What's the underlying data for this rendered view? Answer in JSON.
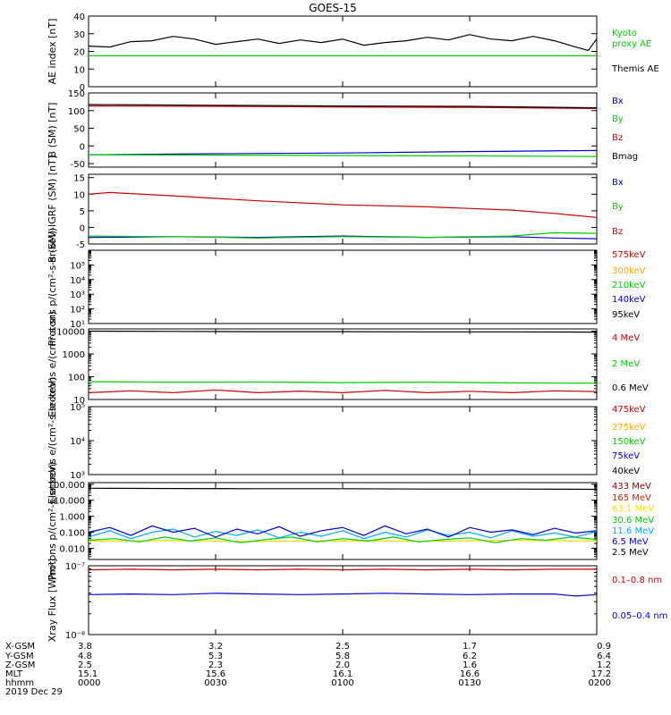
{
  "title": "GOES-15",
  "chart_data": [
    {
      "type": "line",
      "ylabel": "AE index [nT]",
      "ylim": [
        0,
        40
      ],
      "yticks": [
        "0",
        "10",
        "20",
        "30",
        "40"
      ],
      "ytick_values": [
        0,
        10,
        20,
        30,
        40
      ],
      "scale": "linear",
      "series": [
        {
          "name": "Kyoto proxy AE",
          "label_lines": [
            "Kyoto",
            "proxy AE"
          ],
          "color": "#00cc00",
          "x": [
            0,
            120
          ],
          "y": [
            17.5,
            17.5
          ]
        },
        {
          "name": "Themis AE",
          "label_lines": [
            "Themis AE"
          ],
          "color": "#000000",
          "x": [
            0,
            5,
            10,
            15,
            20,
            25,
            30,
            35,
            40,
            45,
            50,
            55,
            60,
            65,
            70,
            75,
            80,
            85,
            90,
            95,
            100,
            105,
            110,
            115,
            118,
            120
          ],
          "y": [
            23,
            22.5,
            25.5,
            26,
            28.5,
            27,
            24,
            25.5,
            27,
            24.5,
            26.5,
            25,
            27,
            23.5,
            25,
            26,
            28,
            26.5,
            29.5,
            27,
            26,
            28.5,
            26,
            22.5,
            20.5,
            27
          ]
        }
      ]
    },
    {
      "type": "line",
      "ylabel": "B (SM) [nT]",
      "ylim": [
        -60,
        150
      ],
      "yticks": [
        "-50",
        "0",
        "50",
        "100",
        "150"
      ],
      "ytick_values": [
        -50,
        0,
        50,
        100,
        150
      ],
      "scale": "linear",
      "series": [
        {
          "name": "Bx",
          "label_lines": [
            "Bx"
          ],
          "color": "#0000cc",
          "x": [
            0,
            30,
            60,
            90,
            120
          ],
          "y": [
            -25,
            -22,
            -20,
            -16,
            -13
          ]
        },
        {
          "name": "By",
          "label_lines": [
            "By"
          ],
          "color": "#00cc00",
          "x": [
            0,
            30,
            60,
            90,
            120
          ],
          "y": [
            -25,
            -26,
            -27,
            -28,
            -30
          ]
        },
        {
          "name": "Bz",
          "label_lines": [
            "Bz"
          ],
          "color": "#cc0000",
          "x": [
            0,
            30,
            60,
            90,
            120
          ],
          "y": [
            113,
            112,
            110,
            109,
            106
          ]
        },
        {
          "name": "Bmag",
          "label_lines": [
            "Bmag"
          ],
          "color": "#000000",
          "x": [
            0,
            30,
            60,
            90,
            120
          ],
          "y": [
            117,
            115,
            113,
            112,
            108
          ]
        }
      ]
    },
    {
      "type": "line",
      "ylabel": "B (SM)-IGRF (SM) [nT]",
      "ylim": [
        -5,
        16
      ],
      "yticks": [
        "-5",
        "0",
        "5",
        "10",
        "15"
      ],
      "ytick_values": [
        -5,
        0,
        5,
        10,
        15
      ],
      "scale": "linear",
      "series": [
        {
          "name": "Bx",
          "label_lines": [
            "Bx"
          ],
          "color": "#0000cc",
          "x": [
            0,
            20,
            40,
            60,
            80,
            100,
            110,
            120
          ],
          "y": [
            -3,
            -2.8,
            -3,
            -2.6,
            -3,
            -2.8,
            -3.2,
            -3.4
          ]
        },
        {
          "name": "By",
          "label_lines": [
            "By"
          ],
          "color": "#00cc00",
          "x": [
            0,
            20,
            40,
            60,
            80,
            100,
            110,
            120
          ],
          "y": [
            -2.6,
            -2.8,
            -3.2,
            -2.8,
            -3,
            -2.6,
            -1.6,
            -1.8
          ]
        },
        {
          "name": "Bz",
          "label_lines": [
            "Bz"
          ],
          "color": "#cc0000",
          "x": [
            0,
            5,
            20,
            40,
            60,
            80,
            100,
            110,
            120
          ],
          "y": [
            10,
            10.5,
            9.5,
            8,
            6.8,
            6.2,
            5.2,
            4.2,
            3
          ]
        }
      ]
    },
    {
      "type": "line",
      "ylabel": "Protons p/(cm²-s-sr-keV)",
      "ylim": [
        1,
        6
      ],
      "yticks": [
        "10¹",
        "10²",
        "10³",
        "10⁴",
        "10⁵"
      ],
      "ytick_values": [
        1,
        2,
        3,
        4,
        5
      ],
      "scale": "log",
      "series": [
        {
          "name": "575keV",
          "label_lines": [
            "575keV"
          ],
          "color": "#cc0000",
          "x": [],
          "y": []
        },
        {
          "name": "300keV",
          "label_lines": [
            "300keV"
          ],
          "color": "#ffaa00",
          "x": [],
          "y": []
        },
        {
          "name": "210keV",
          "label_lines": [
            "210keV"
          ],
          "color": "#00cc00",
          "x": [],
          "y": []
        },
        {
          "name": "140keV",
          "label_lines": [
            "140keV"
          ],
          "color": "#0000cc",
          "x": [],
          "y": []
        },
        {
          "name": "95keV",
          "label_lines": [
            "95keV"
          ],
          "color": "#000000",
          "x": [],
          "y": []
        }
      ]
    },
    {
      "type": "line",
      "ylabel": "Electrons e/(cm²-s-sr)",
      "ylim": [
        1,
        4.1
      ],
      "yticks": [
        "10",
        "100",
        "1000",
        "10000"
      ],
      "ytick_values": [
        1,
        2,
        3,
        4
      ],
      "scale": "log",
      "series": [
        {
          "name": "4 MeV",
          "label_lines": [
            "4 MeV"
          ],
          "color": "#cc0000",
          "x": [
            0,
            10,
            20,
            30,
            40,
            50,
            60,
            70,
            80,
            90,
            100,
            110,
            120
          ],
          "y": [
            1.3,
            1.38,
            1.3,
            1.42,
            1.3,
            1.37,
            1.3,
            1.4,
            1.3,
            1.36,
            1.3,
            1.38,
            1.35
          ]
        },
        {
          "name": "2 MeV",
          "label_lines": [
            "2 MeV"
          ],
          "color": "#00cc00",
          "x": [
            0,
            20,
            40,
            60,
            80,
            100,
            120
          ],
          "y": [
            1.78,
            1.76,
            1.77,
            1.74,
            1.76,
            1.73,
            1.72
          ]
        },
        {
          "name": "0.6 MeV",
          "label_lines": [
            "0.6 MeV"
          ],
          "color": "#000000",
          "x": [
            0,
            20,
            40,
            60,
            80,
            100,
            120
          ],
          "y": [
            4.0,
            3.99,
            3.98,
            3.98,
            3.97,
            3.97,
            3.96
          ]
        }
      ]
    },
    {
      "type": "line",
      "ylabel": "Electrons e/(cm²-s-sr-keV)",
      "ylim": [
        3,
        5
      ],
      "yticks": [
        "10³",
        "10⁴",
        "10⁵"
      ],
      "ytick_values": [
        3,
        4,
        5
      ],
      "scale": "log",
      "series": [
        {
          "name": "475keV",
          "label_lines": [
            "475keV"
          ],
          "color": "#cc0000",
          "x": [],
          "y": []
        },
        {
          "name": "275keV",
          "label_lines": [
            "275keV"
          ],
          "color": "#ffaa00",
          "x": [],
          "y": []
        },
        {
          "name": "150keV",
          "label_lines": [
            "150keV"
          ],
          "color": "#00cc00",
          "x": [],
          "y": []
        },
        {
          "name": "75keV",
          "label_lines": [
            "75keV"
          ],
          "color": "#0000cc",
          "x": [],
          "y": []
        },
        {
          "name": "40keV",
          "label_lines": [
            "40keV"
          ],
          "color": "#000000",
          "x": [],
          "y": []
        }
      ]
    },
    {
      "type": "line",
      "ylabel": "Protons p/(cm²-s-sr-keV)",
      "ylim": [
        -2.7,
        2.1
      ],
      "yticks": [
        "0.001",
        "0.010",
        "0.100",
        "1.000",
        "10.000",
        "100.000"
      ],
      "ytick_values": [
        -3,
        -2,
        -1,
        0,
        1,
        2
      ],
      "scale": "log",
      "series": [
        {
          "name": "433 MeV",
          "label_lines": [
            "433 MeV"
          ],
          "color": "#880000",
          "x": [],
          "y": []
        },
        {
          "name": "165 MeV",
          "label_lines": [
            "165 MeV"
          ],
          "color": "#cc2200",
          "x": [],
          "y": []
        },
        {
          "name": "63.1 MeV",
          "label_lines": [
            "63.1 MeV"
          ],
          "color": "#ffdd00",
          "x": [
            0,
            20,
            40,
            60,
            80,
            100,
            120
          ],
          "y": [
            -1.55,
            -1.52,
            -1.58,
            -1.53,
            -1.56,
            -1.5,
            -1.55
          ]
        },
        {
          "name": "30.6 MeV",
          "label_lines": [
            "30.6 MeV"
          ],
          "color": "#00cc00",
          "x": [
            0,
            6,
            12,
            18,
            24,
            30,
            36,
            42,
            48,
            54,
            60,
            66,
            72,
            78,
            84,
            90,
            96,
            102,
            108,
            114,
            120
          ],
          "y": [
            -1.5,
            -1.4,
            -1.6,
            -1.3,
            -1.55,
            -1.35,
            -1.65,
            -1.45,
            -1.3,
            -1.6,
            -1.4,
            -1.55,
            -1.3,
            -1.6,
            -1.45,
            -1.35,
            -1.65,
            -1.4,
            -1.5,
            -1.3,
            -1.45
          ]
        },
        {
          "name": "11.6 MeV",
          "label_lines": [
            "11.6 MeV"
          ],
          "color": "#00aaff",
          "x": [
            0,
            5,
            10,
            15,
            20,
            25,
            30,
            35,
            40,
            45,
            50,
            55,
            60,
            65,
            70,
            75,
            80,
            85,
            90,
            95,
            100,
            105,
            110,
            115,
            120
          ],
          "y": [
            -1.3,
            -0.9,
            -1.4,
            -1.0,
            -0.8,
            -1.3,
            -0.95,
            -1.2,
            -0.85,
            -1.35,
            -1.0,
            -1.25,
            -0.9,
            -1.4,
            -1.0,
            -1.3,
            -0.85,
            -1.2,
            -1.0,
            -1.35,
            -0.9,
            -1.25,
            -1.05,
            -1.3,
            -0.95
          ]
        },
        {
          "name": "6.5 MeV",
          "label_lines": [
            "6.5 MeV"
          ],
          "color": "#0000cc",
          "x": [
            0,
            5,
            10,
            15,
            20,
            25,
            30,
            35,
            40,
            45,
            50,
            55,
            60,
            65,
            70,
            75,
            80,
            85,
            90,
            95,
            100,
            105,
            110,
            115,
            120
          ],
          "y": [
            -1.0,
            -0.7,
            -1.2,
            -0.6,
            -1.0,
            -0.75,
            -1.3,
            -0.8,
            -1.1,
            -0.65,
            -1.25,
            -0.9,
            -0.7,
            -1.2,
            -0.6,
            -1.1,
            -0.8,
            -1.3,
            -0.7,
            -1.0,
            -0.85,
            -1.15,
            -0.75,
            -1.05,
            -0.9
          ]
        },
        {
          "name": "2.5 MeV",
          "label_lines": [
            "2.5 MeV"
          ],
          "color": "#000000",
          "x": [
            0,
            20,
            40,
            60,
            80,
            100,
            120
          ],
          "y": [
            1.75,
            1.73,
            1.72,
            1.72,
            1.7,
            1.7,
            1.68
          ]
        }
      ]
    },
    {
      "type": "line",
      "ylabel": "Xray Flux [W/m²]",
      "ylim": [
        -8,
        -7
      ],
      "yticks": [
        "10⁻⁸",
        "10⁻⁷"
      ],
      "ytick_values": [
        -8,
        -7
      ],
      "scale": "log",
      "series": [
        {
          "name": "0.1-0.8 nm",
          "label_lines": [
            "0.1–0.8 nm"
          ],
          "color": "#cc0000",
          "x": [
            0,
            10,
            20,
            30,
            40,
            50,
            60,
            70,
            80,
            90,
            100,
            110,
            120
          ],
          "y": [
            -7.06,
            -7.05,
            -7.06,
            -7.05,
            -7.06,
            -7.05,
            -7.06,
            -7.05,
            -7.06,
            -7.05,
            -7.06,
            -7.05,
            -7.05
          ]
        },
        {
          "name": "0.05-0.4 nm",
          "label_lines": [
            "0.05–0.4 nm"
          ],
          "color": "#0000cc",
          "x": [
            0,
            10,
            20,
            30,
            40,
            50,
            60,
            70,
            80,
            90,
            100,
            110,
            115,
            120
          ],
          "y": [
            -7.42,
            -7.41,
            -7.42,
            -7.4,
            -7.41,
            -7.42,
            -7.41,
            -7.4,
            -7.41,
            -7.42,
            -7.41,
            -7.41,
            -7.44,
            -7.42
          ]
        }
      ]
    }
  ],
  "x_axis": {
    "range_minutes": [
      0,
      120
    ],
    "row_labels": [
      "X-GSM",
      "Y-GSM",
      "Z-GSM",
      "MLT",
      "hhmm",
      "2019 Dec 29"
    ],
    "ticks": [
      {
        "minutes": 0,
        "values": [
          "3.8",
          "4.8",
          "2.5",
          "15.1",
          "0000"
        ]
      },
      {
        "minutes": 30,
        "values": [
          "3.2",
          "5.3",
          "2.3",
          "15.6",
          "0030"
        ]
      },
      {
        "minutes": 60,
        "values": [
          "2.5",
          "5.8",
          "2.0",
          "16.1",
          "0100"
        ]
      },
      {
        "minutes": 90,
        "values": [
          "1.7",
          "6.2",
          "1.6",
          "16.6",
          "0130"
        ]
      },
      {
        "minutes": 120,
        "values": [
          "0.9",
          "6.4",
          "1.2",
          "17.2",
          "0200"
        ]
      }
    ]
  }
}
